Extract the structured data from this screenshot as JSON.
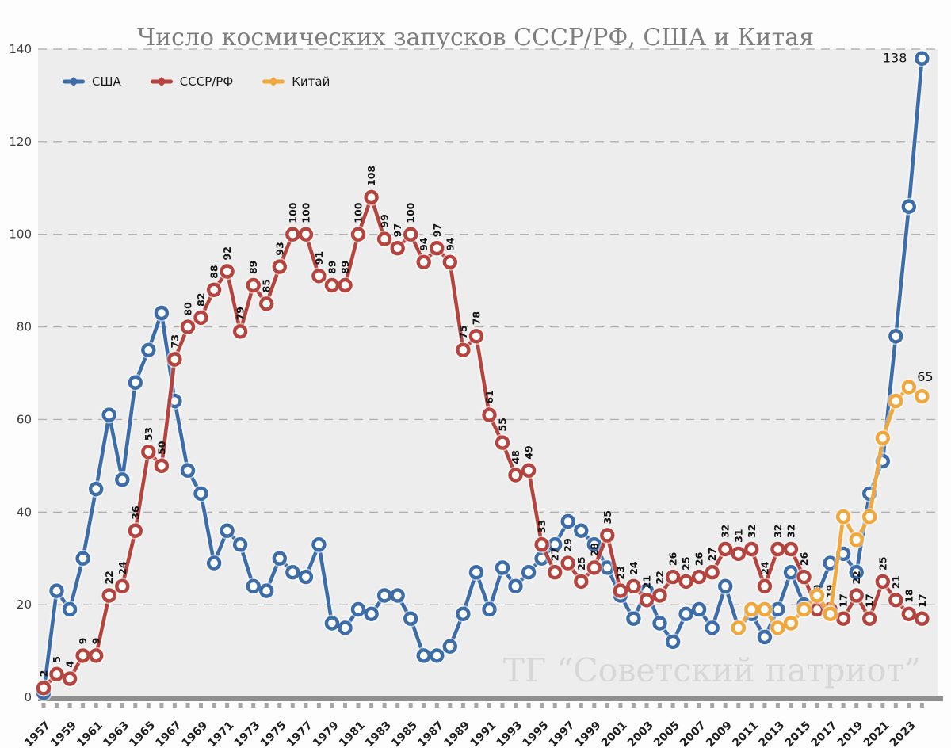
{
  "chart_data": {
    "type": "line",
    "title": "Число космических запусков СССР/РФ, США и Китая",
    "watermark": "ТГ “Советский патриот”",
    "x_start": 1957,
    "x_end": 2024,
    "years": [
      1957,
      1958,
      1959,
      1960,
      1961,
      1962,
      1963,
      1964,
      1965,
      1966,
      1967,
      1968,
      1969,
      1970,
      1971,
      1972,
      1973,
      1974,
      1975,
      1976,
      1977,
      1978,
      1979,
      1980,
      1981,
      1982,
      1983,
      1984,
      1985,
      1986,
      1987,
      1988,
      1989,
      1990,
      1991,
      1992,
      1993,
      1994,
      1995,
      1996,
      1997,
      1998,
      1999,
      2000,
      2001,
      2002,
      2003,
      2004,
      2005,
      2006,
      2007,
      2008,
      2009,
      2010,
      2011,
      2012,
      2013,
      2014,
      2015,
      2016,
      2017,
      2018,
      2019,
      2020,
      2021,
      2022,
      2023,
      2024
    ],
    "xtick_labels": [
      1957,
      1959,
      1961,
      1963,
      1965,
      1967,
      1969,
      1971,
      1973,
      1975,
      1977,
      1979,
      1981,
      1983,
      1985,
      1987,
      1989,
      1991,
      1993,
      1995,
      1997,
      1999,
      2001,
      2003,
      2005,
      2007,
      2009,
      2011,
      2013,
      2015,
      2017,
      2019,
      2021,
      2023
    ],
    "yticks": [
      0,
      20,
      40,
      60,
      80,
      100,
      120,
      140
    ],
    "ylim": [
      0,
      140
    ],
    "grid": "horizontal-dashed",
    "legend_position": "top-left",
    "colors": {
      "usa": "#3c6da9",
      "ussr": "#b5443e",
      "china": "#f0a73c",
      "plot_bg": "#ededed",
      "grid": "#b3b3b3",
      "axis_line": "#8f8f8f",
      "tick": "#a6a6a6",
      "axis_text": "#3d3d3d",
      "year_text": "#1f1f1f",
      "label_text": "#141414",
      "title_text": "#7e7e7e",
      "watermark_text": "#d7d7d7"
    },
    "series": [
      {
        "id": "usa",
        "name": "США",
        "color": "#3c6da9",
        "start_year": 1957,
        "labels": "last",
        "label_pos": "left",
        "values": [
          1,
          23,
          19,
          30,
          45,
          61,
          47,
          68,
          75,
          83,
          64,
          49,
          44,
          29,
          36,
          33,
          24,
          23,
          30,
          27,
          26,
          33,
          16,
          15,
          19,
          18,
          22,
          22,
          17,
          9,
          9,
          11,
          18,
          27,
          19,
          28,
          24,
          27,
          30,
          33,
          38,
          36,
          33,
          28,
          22,
          17,
          23,
          16,
          12,
          18,
          19,
          15,
          24,
          15,
          18,
          13,
          19,
          27,
          20,
          22,
          29,
          31,
          27,
          44,
          51,
          78,
          106,
          138
        ]
      },
      {
        "id": "ussr",
        "name": "СССР/РФ",
        "color": "#b5443e",
        "start_year": 1957,
        "labels": "all",
        "label_pos": "above-rotated",
        "values": [
          2,
          5,
          4,
          9,
          9,
          22,
          24,
          36,
          53,
          50,
          73,
          80,
          82,
          88,
          92,
          79,
          89,
          85,
          93,
          100,
          100,
          91,
          89,
          89,
          100,
          108,
          99,
          97,
          100,
          94,
          97,
          94,
          75,
          78,
          61,
          55,
          48,
          49,
          33,
          27,
          29,
          25,
          28,
          35,
          23,
          24,
          21,
          22,
          26,
          25,
          26,
          27,
          32,
          31,
          32,
          24,
          32,
          32,
          26,
          19,
          19,
          17,
          22,
          17,
          25,
          21,
          18,
          17
        ]
      },
      {
        "id": "china",
        "name": "Китай",
        "color": "#f0a73c",
        "start_year": 2010,
        "labels": "last",
        "label_pos": "above",
        "values": [
          15,
          19,
          19,
          15,
          16,
          19,
          22,
          18,
          39,
          34,
          39,
          56,
          64,
          67,
          65
        ]
      }
    ]
  }
}
